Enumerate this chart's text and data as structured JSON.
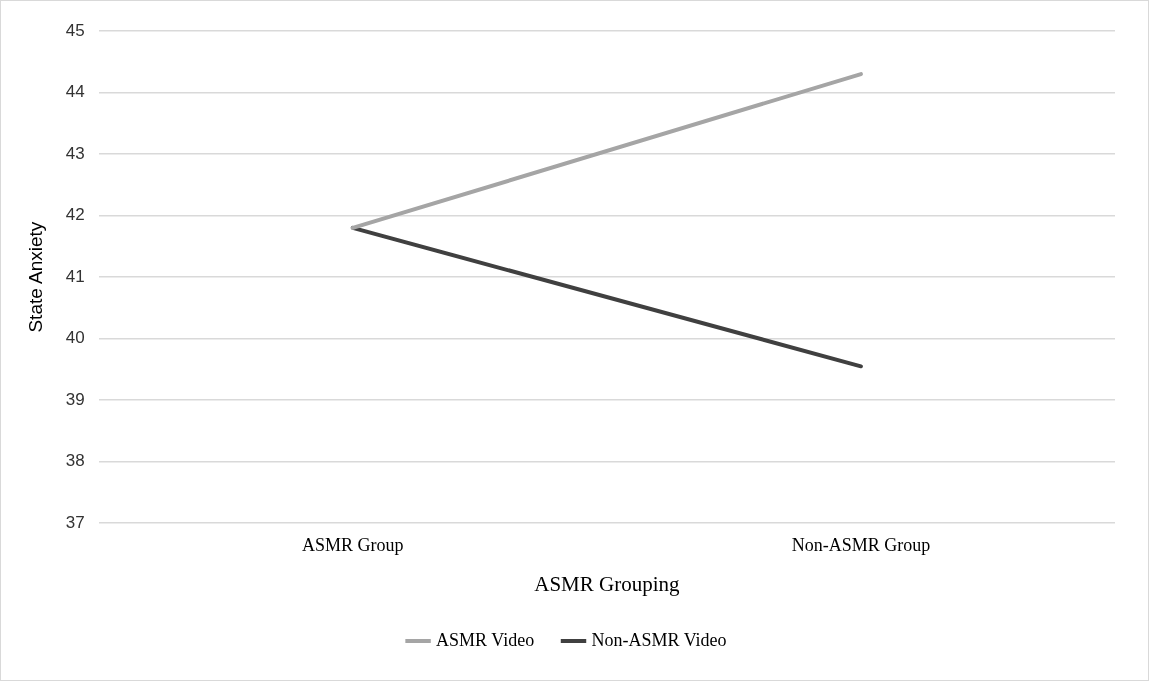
{
  "chart_data": {
    "type": "line",
    "xlabel": "ASMR Grouping",
    "ylabel": "State Anxiety",
    "categories": [
      "ASMR Group",
      "Non-ASMR Group"
    ],
    "series": [
      {
        "name": "ASMR Video",
        "color": "#a5a5a5",
        "values": [
          41.8,
          44.3
        ]
      },
      {
        "name": "Non-ASMR Video",
        "color": "#404040",
        "values": [
          41.8,
          39.55
        ]
      }
    ],
    "ylim": [
      37,
      45
    ],
    "yticks": [
      37,
      38,
      39,
      40,
      41,
      42,
      43,
      44,
      45
    ],
    "grid": "y",
    "legend": "bottom",
    "marker": "none",
    "line_style": "solid"
  }
}
